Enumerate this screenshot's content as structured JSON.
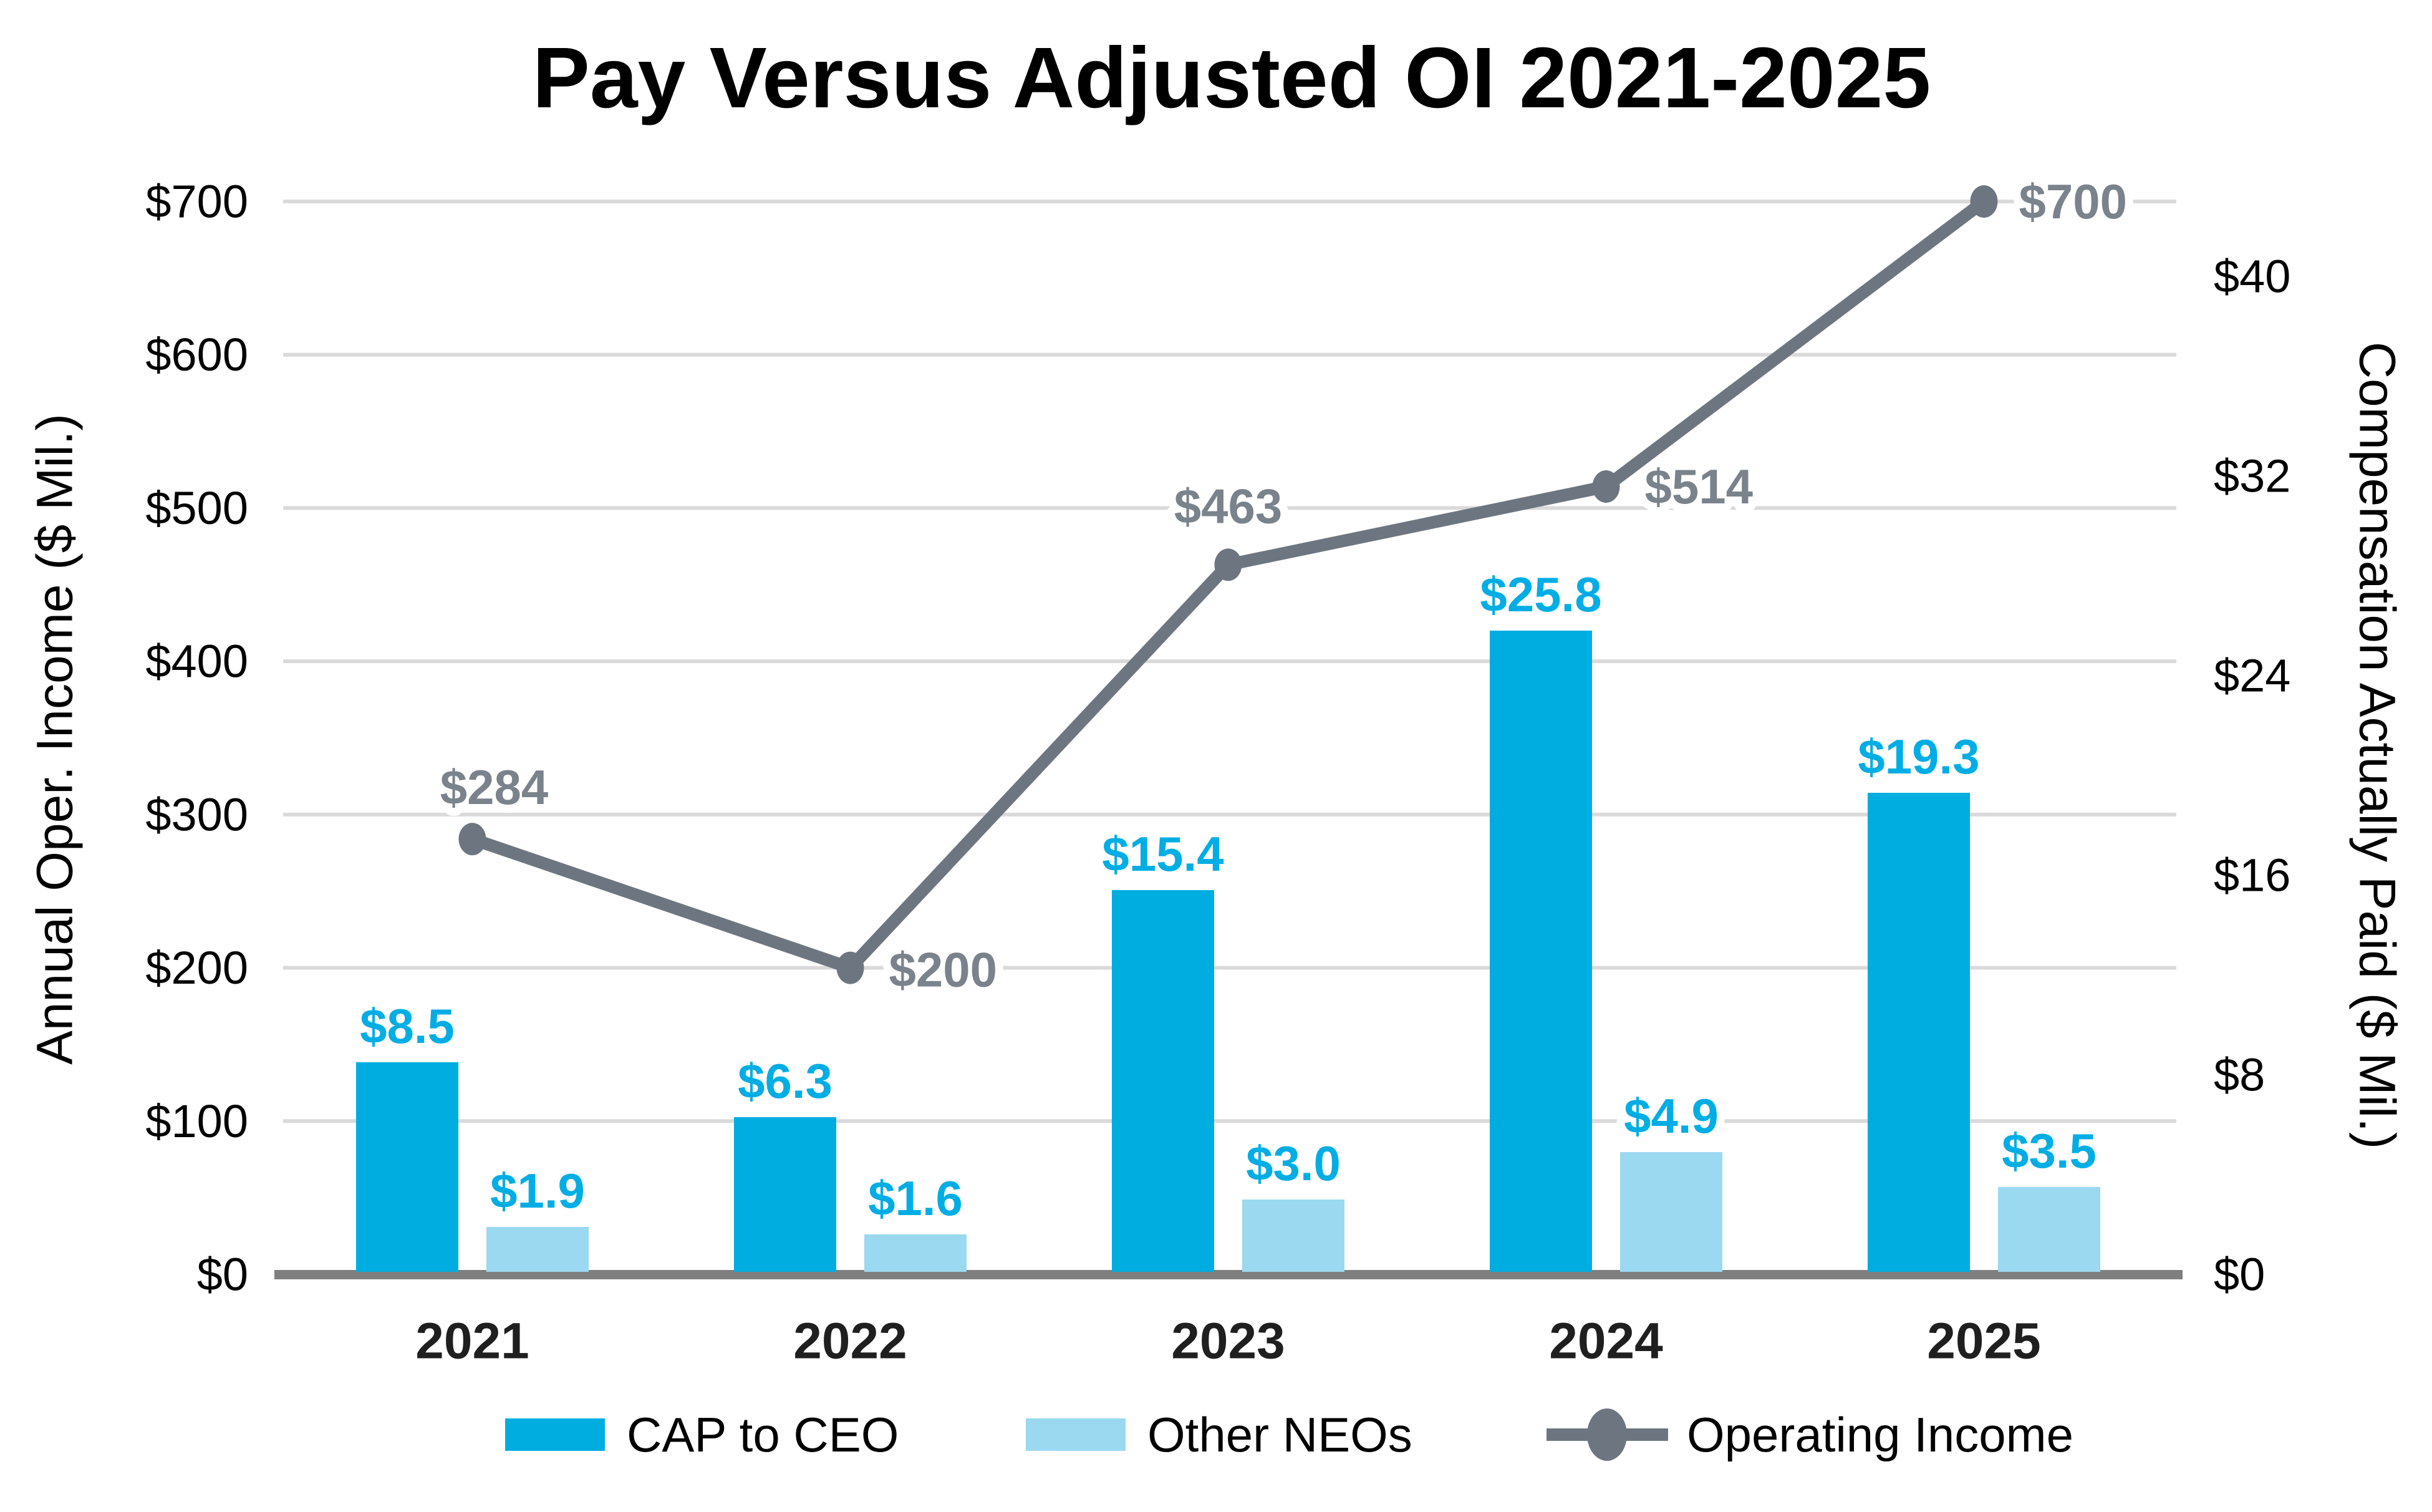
{
  "chart_data": {
    "type": "combo-bar-line",
    "title": "Pay Versus Adjusted OI 2021-2025",
    "categories": [
      "2021",
      "2022",
      "2023",
      "2024",
      "2025"
    ],
    "series": [
      {
        "name": "CAP to CEO",
        "type": "bar",
        "axis": "right",
        "color": "#00ADE0",
        "label_color": "#00ADE4",
        "values": [
          8.5,
          6.3,
          15.4,
          25.8,
          19.3
        ],
        "labels": [
          "$8.5",
          "$6.3",
          "$15.4",
          "$25.8",
          "$19.3"
        ]
      },
      {
        "name": "Other NEOs",
        "type": "bar",
        "axis": "right",
        "color": "#9AD9F0",
        "label_color": "#00ADE4",
        "values": [
          1.9,
          1.6,
          3.0,
          4.9,
          3.5
        ],
        "labels": [
          "$1.9",
          "$1.6",
          "$3.0",
          "$4.9",
          "$3.5"
        ]
      },
      {
        "name": "Operating Income",
        "type": "line",
        "axis": "left",
        "color": "#6D7680",
        "label_color": "#7A828B",
        "values": [
          284,
          200,
          463,
          514,
          700
        ],
        "labels": [
          "$284",
          "$200",
          "$463",
          "$514",
          "$700"
        ]
      }
    ],
    "left_axis": {
      "title": "Annual Oper. Income ($ Mil.)",
      "range": [
        0,
        700
      ],
      "ticks": [
        {
          "value": 0,
          "label": "$0"
        },
        {
          "value": 100,
          "label": "$100"
        },
        {
          "value": 200,
          "label": "$200"
        },
        {
          "value": 300,
          "label": "$300"
        },
        {
          "value": 400,
          "label": "$400"
        },
        {
          "value": 500,
          "label": "$500"
        },
        {
          "value": 600,
          "label": "$600"
        },
        {
          "value": 700,
          "label": "$700"
        }
      ]
    },
    "right_axis": {
      "title": "Compensation Actually Paid ($ Mil.)",
      "range": [
        0,
        43
      ],
      "ticks": [
        {
          "value": 0,
          "label": "$0"
        },
        {
          "value": 8,
          "label": "$8"
        },
        {
          "value": 16,
          "label": "$16"
        },
        {
          "value": 24,
          "label": "$24"
        },
        {
          "value": 32,
          "label": "$32"
        },
        {
          "value": 40,
          "label": "$40"
        }
      ]
    },
    "grid": true,
    "legend_position": "bottom",
    "colors": {
      "gridline": "#DADADA",
      "baseline": "#7F7F7F",
      "background": "#FFFFFF"
    }
  }
}
